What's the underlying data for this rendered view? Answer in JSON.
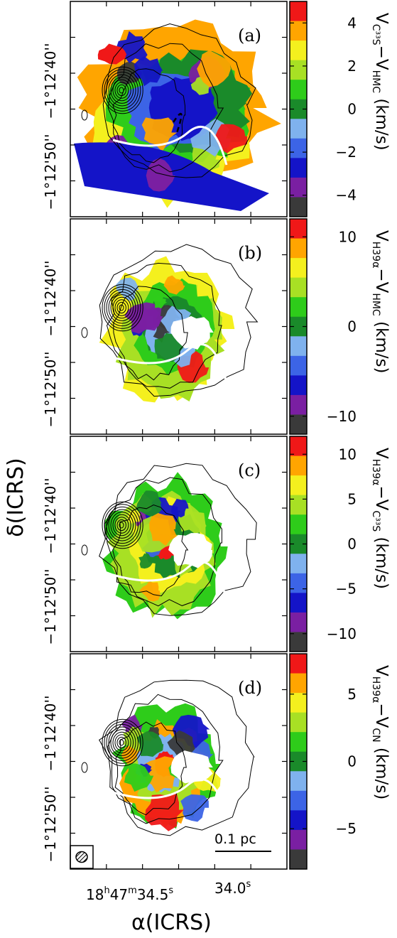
{
  "figure": {
    "xlabel": "α(ICRS)",
    "ylabel": "δ(ICRS)",
    "x_tick_labels": [
      {
        "prefix": "18",
        "h": "h",
        "mid": "47",
        "m": "m",
        "sec": "34.5",
        "s": "s"
      },
      {
        "sec": "34.0",
        "s": "s"
      }
    ],
    "y_tick_labels": [
      "−1°12'40''",
      "−1°12'50''"
    ],
    "scalebar_label": "0.1 pc",
    "beam": "hatched-ellipse"
  },
  "colors": {
    "levels": [
      "#3a3a3a",
      "#7a1fa2",
      "#1414c8",
      "#3c64e6",
      "#7fb2ee",
      "#1a8a2a",
      "#2ecc1a",
      "#a8e024",
      "#f4f01e",
      "#ffa500",
      "#f01818"
    ]
  },
  "chart_data": [
    {
      "type": "heatmap",
      "panel": "(a)",
      "colorbar_label": "V_C33S − V_HMC (km/s)",
      "colorbar_ticks": [
        4,
        2,
        0,
        -2,
        -4
      ],
      "clim": [
        -5,
        5
      ]
    },
    {
      "type": "heatmap",
      "panel": "(b)",
      "colorbar_label": "V_H39α − V_HMC (km/s)",
      "colorbar_ticks": [
        10,
        0,
        -10
      ],
      "clim": [
        -12,
        12
      ]
    },
    {
      "type": "heatmap",
      "panel": "(c)",
      "colorbar_label": "V_H39α − V_C33S (km/s)",
      "colorbar_ticks": [
        10,
        5,
        0,
        -5,
        -10
      ],
      "clim": [
        -12,
        12
      ]
    },
    {
      "type": "heatmap",
      "panel": "(d)",
      "colorbar_label": "V_H39α − V_CNA (km/s)",
      "colorbar_ticks": [
        5,
        0,
        -5
      ],
      "clim": [
        -8,
        8
      ]
    }
  ]
}
